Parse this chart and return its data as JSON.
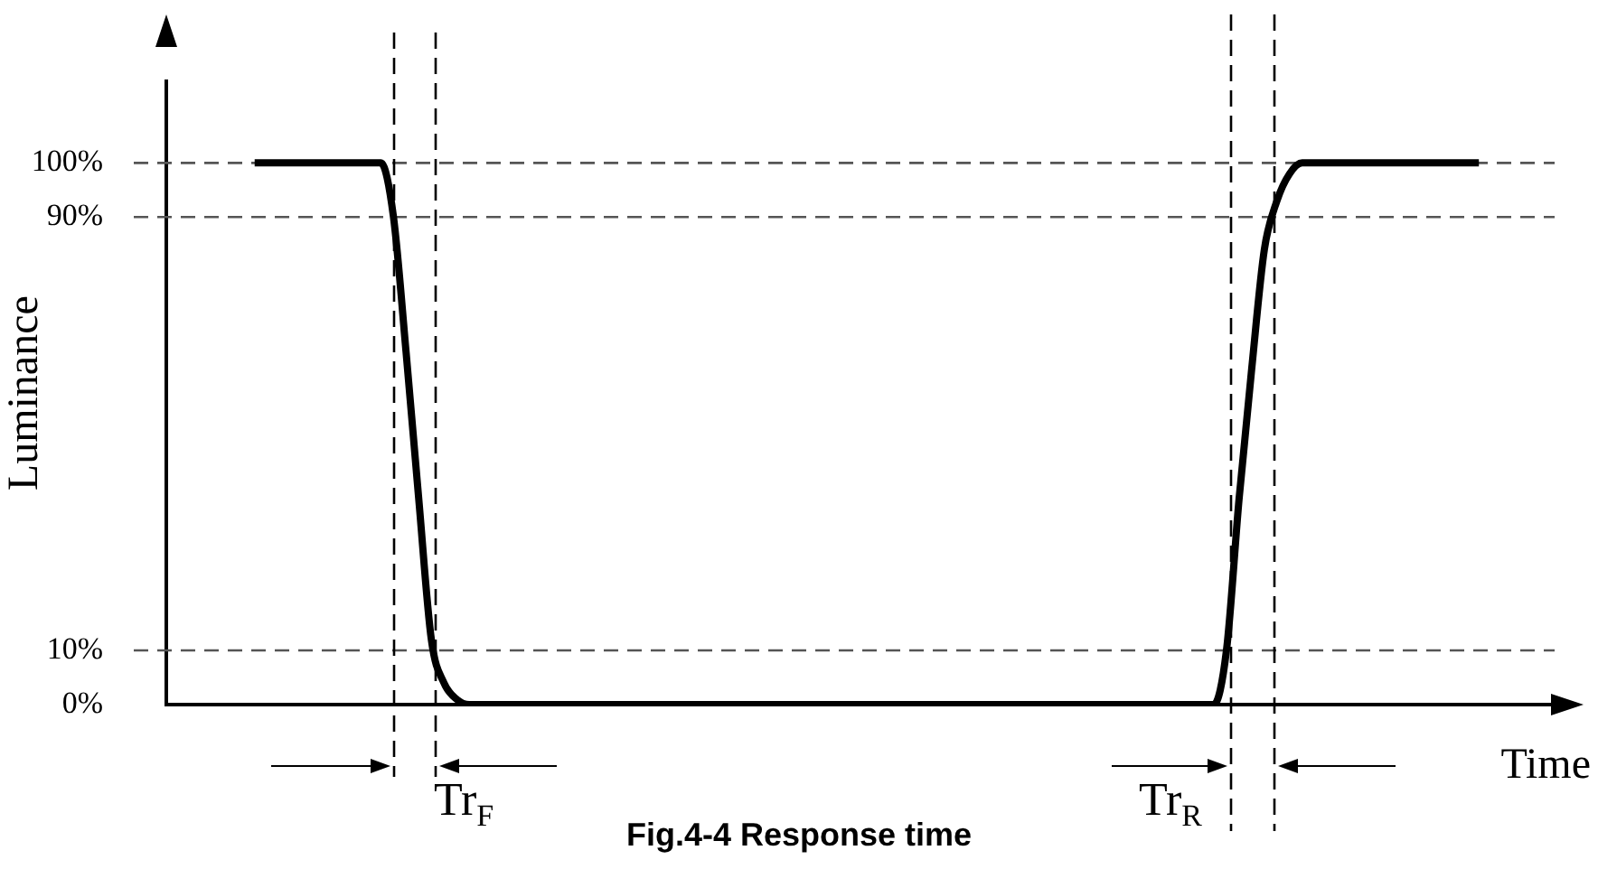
{
  "chart_data": {
    "type": "line",
    "title": "Fig.4-4 Response time",
    "xlabel": "Time",
    "ylabel": "Luminance",
    "categories": [
      null,
      null,
      null,
      null,
      null,
      null,
      null,
      null,
      null,
      null,
      null,
      null,
      null,
      null,
      null,
      null,
      null,
      null,
      null,
      null,
      null,
      null,
      null,
      null,
      null,
      null,
      null,
      null,
      null,
      null,
      null,
      null,
      null,
      null,
      null,
      null,
      null,
      null,
      null,
      null,
      null,
      null,
      null,
      null,
      null,
      null,
      null,
      null,
      null,
      null,
      null,
      null,
      null,
      null,
      null,
      null,
      null,
      null,
      null,
      null,
      null,
      null,
      null,
      null,
      null,
      null,
      null,
      null,
      null,
      null,
      null,
      null,
      null,
      null,
      null,
      null,
      null,
      null,
      null,
      null,
      null,
      null,
      null,
      null,
      null,
      null,
      null,
      null,
      null,
      null,
      null,
      null,
      null,
      null,
      null,
      null,
      null,
      null,
      null,
      null,
      null,
      null,
      null,
      null,
      null,
      null,
      null,
      null,
      null,
      null,
      null
    ],
    "series": [
      {
        "color": "#000000",
        "values": [
          null,
          null,
          null,
          null,
          null,
          null,
          null,
          100,
          100,
          100,
          100,
          100,
          100,
          100,
          100,
          100,
          100,
          100,
          90,
          65,
          38,
          12,
          4,
          1,
          0,
          0,
          0,
          0,
          0,
          0,
          0,
          0,
          0,
          0,
          0,
          0,
          0,
          0,
          0,
          0,
          0,
          0,
          0,
          0,
          0,
          0,
          0,
          0,
          0,
          0,
          0,
          0,
          0,
          0,
          0,
          0,
          0,
          0,
          0,
          0,
          0,
          0,
          0,
          0,
          0,
          0,
          0,
          0,
          0,
          0,
          0,
          0,
          0,
          0,
          0,
          0,
          0,
          0,
          0,
          0,
          0,
          0,
          0,
          0,
          10,
          38,
          62,
          84,
          93,
          98,
          100,
          100,
          100,
          100,
          100,
          100,
          100,
          100,
          100,
          100,
          100,
          100,
          100,
          100,
          100,
          null,
          null,
          null,
          null,
          null,
          null
        ]
      }
    ],
    "ylim": [
      0,
      115
    ],
    "yticks": [
      {
        "value": 0,
        "label": "0%"
      },
      {
        "value": 10,
        "label": "10%"
      },
      {
        "value": 90,
        "label": "90%"
      },
      {
        "value": 100,
        "label": "100%"
      }
    ],
    "ref_lines": [
      {
        "axis": "y",
        "value": 10,
        "color": "#555555",
        "line_style": "dashed"
      },
      {
        "axis": "y",
        "value": 90,
        "color": "#555555",
        "line_style": "dashed"
      },
      {
        "axis": "y",
        "value": 100,
        "color": "#555555",
        "line_style": "dashed"
      }
    ],
    "annotations": [
      "Tr$_{F}$",
      "Tr$_{R}$"
    ],
    "grid": false,
    "legend": false,
    "marker": "none",
    "line_style": "solid"
  }
}
